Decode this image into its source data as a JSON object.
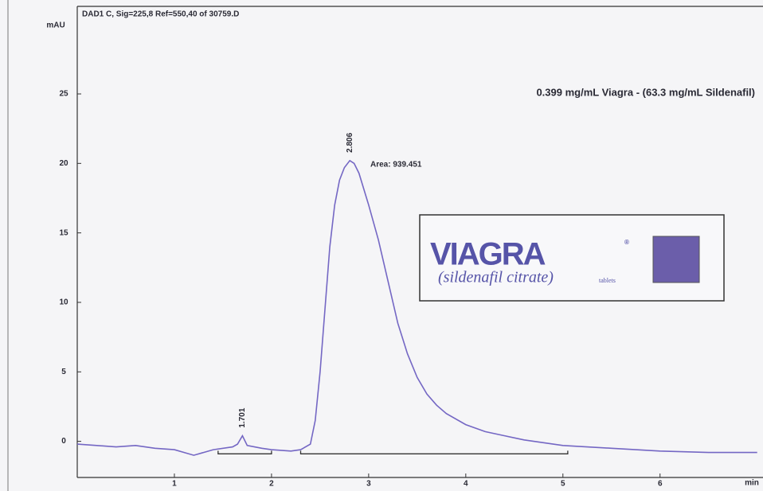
{
  "chart_data": {
    "type": "line",
    "title": "DAD1 C, Sig=225,8 Ref=550,40 of 30759.D",
    "subtitle": "0.399 mg/mL Viagra - (63.3 mg/mL Sildenafil)",
    "y_label": "mAU",
    "x_label": "min",
    "color": "#7467c4",
    "xlim": [
      0,
      7.06
    ],
    "ylim": [
      -2.6,
      31.3
    ],
    "xticks": [
      1,
      2,
      3,
      4,
      5,
      6
    ],
    "yticks": [
      0,
      5,
      10,
      15,
      20,
      25
    ],
    "x": [
      0.0,
      0.2,
      0.4,
      0.6,
      0.8,
      1.0,
      1.2,
      1.4,
      1.6,
      1.65,
      1.701,
      1.75,
      1.9,
      2.0,
      2.2,
      2.3,
      2.4,
      2.45,
      2.5,
      2.55,
      2.6,
      2.65,
      2.7,
      2.75,
      2.806,
      2.85,
      2.9,
      3.0,
      3.1,
      3.2,
      3.3,
      3.4,
      3.5,
      3.6,
      3.7,
      3.8,
      4.0,
      4.2,
      4.4,
      4.6,
      4.8,
      5.0,
      5.5,
      6.0,
      6.5,
      7.0
    ],
    "values": [
      -0.2,
      -0.3,
      -0.4,
      -0.3,
      -0.5,
      -0.6,
      -1.0,
      -0.6,
      -0.4,
      -0.2,
      0.4,
      -0.3,
      -0.5,
      -0.6,
      -0.7,
      -0.6,
      -0.2,
      1.5,
      5.0,
      9.5,
      14.0,
      17.0,
      18.8,
      19.7,
      20.2,
      20.0,
      19.3,
      17.0,
      14.5,
      11.5,
      8.5,
      6.3,
      4.6,
      3.4,
      2.6,
      2.0,
      1.2,
      0.7,
      0.4,
      0.1,
      -0.1,
      -0.3,
      -0.5,
      -0.7,
      -0.8,
      -0.8
    ],
    "peaks": [
      1.701,
      2.806
    ],
    "peak_heights": [
      0.4,
      20.2
    ],
    "area_label": "Area: 939.451",
    "integration_segments": [
      {
        "x0": 1.45,
        "x1": 2.0,
        "y": -0.9
      },
      {
        "x0": 2.3,
        "x1": 5.05,
        "y": -0.9
      }
    ],
    "logo": {
      "brand": "VIAGRA",
      "mark": "®",
      "generic": "(sildenafil citrate)",
      "form": "tablets"
    }
  }
}
